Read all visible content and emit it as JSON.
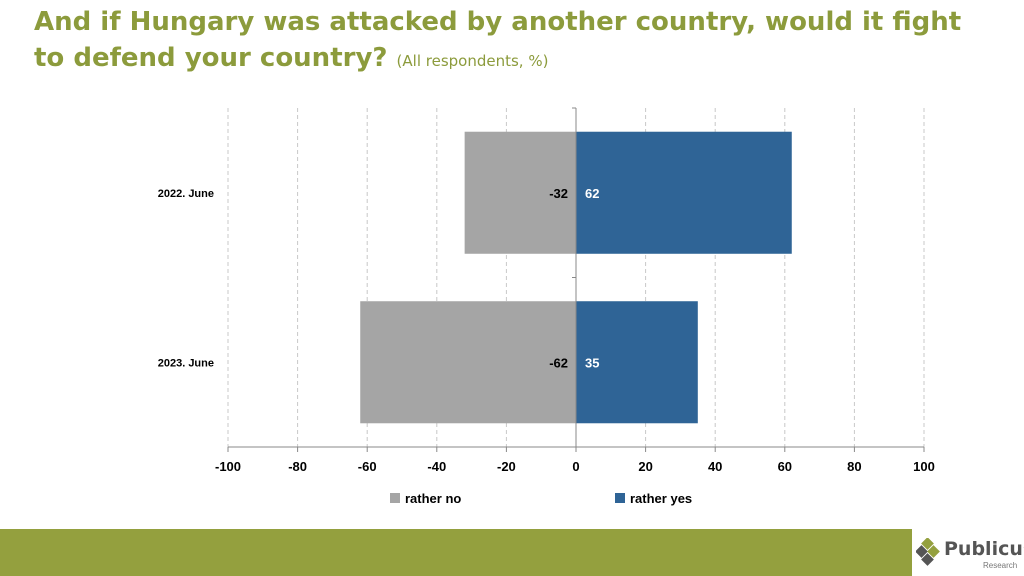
{
  "title": "And if Hungary was attacked by another country, would it fight to defend your country?",
  "subtitle": "(All respondents, %)",
  "colors": {
    "title": "#8c9b3c",
    "no": "#a5a5a5",
    "yes": "#2f6496",
    "footer": "#94a03e"
  },
  "logo": {
    "name": "Publicus",
    "tag": "Research"
  },
  "chart_data": {
    "type": "bar",
    "orientation": "horizontal",
    "stacked": "diverging",
    "categories": [
      "2022. June",
      "2023. June"
    ],
    "series": [
      {
        "name": "rather no",
        "values": [
          -32,
          -62
        ],
        "labels": [
          "-32",
          "-62"
        ]
      },
      {
        "name": "rather yes",
        "values": [
          62,
          35
        ],
        "labels": [
          "62",
          "35"
        ]
      }
    ],
    "xlim": [
      -100,
      100
    ],
    "xticks": [
      "-100",
      "-80",
      "-60",
      "-40",
      "-20",
      "0",
      "20",
      "40",
      "60",
      "80",
      "100"
    ],
    "grid": "vertical-dashed",
    "legend": "bottom"
  }
}
